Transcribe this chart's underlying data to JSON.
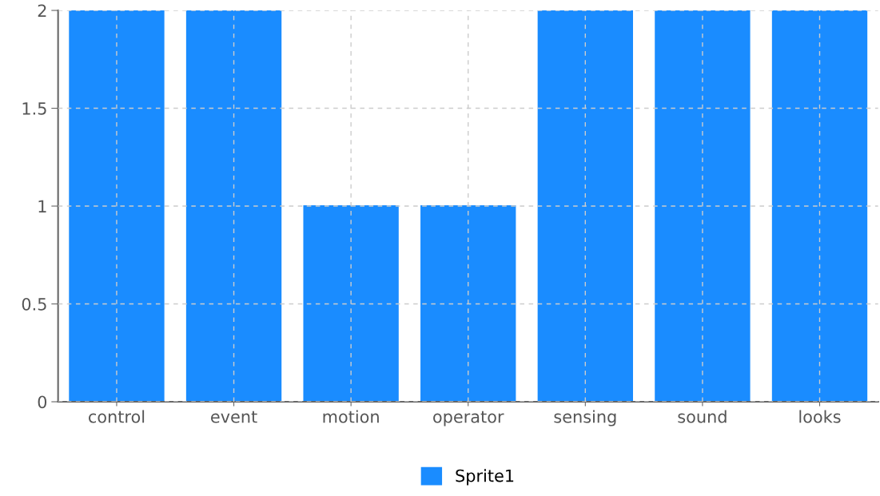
{
  "chart_data": {
    "type": "bar",
    "categories": [
      "control",
      "event",
      "motion",
      "operator",
      "sensing",
      "sound",
      "looks"
    ],
    "series": [
      {
        "name": "Sprite1",
        "color": "#1a8cff",
        "values": [
          2,
          2,
          1,
          1,
          2,
          2,
          2
        ]
      }
    ],
    "ylim": [
      0,
      2
    ],
    "yticks": [
      0,
      0.5,
      1,
      1.5,
      2
    ],
    "grid": true,
    "legend": "bottom"
  }
}
